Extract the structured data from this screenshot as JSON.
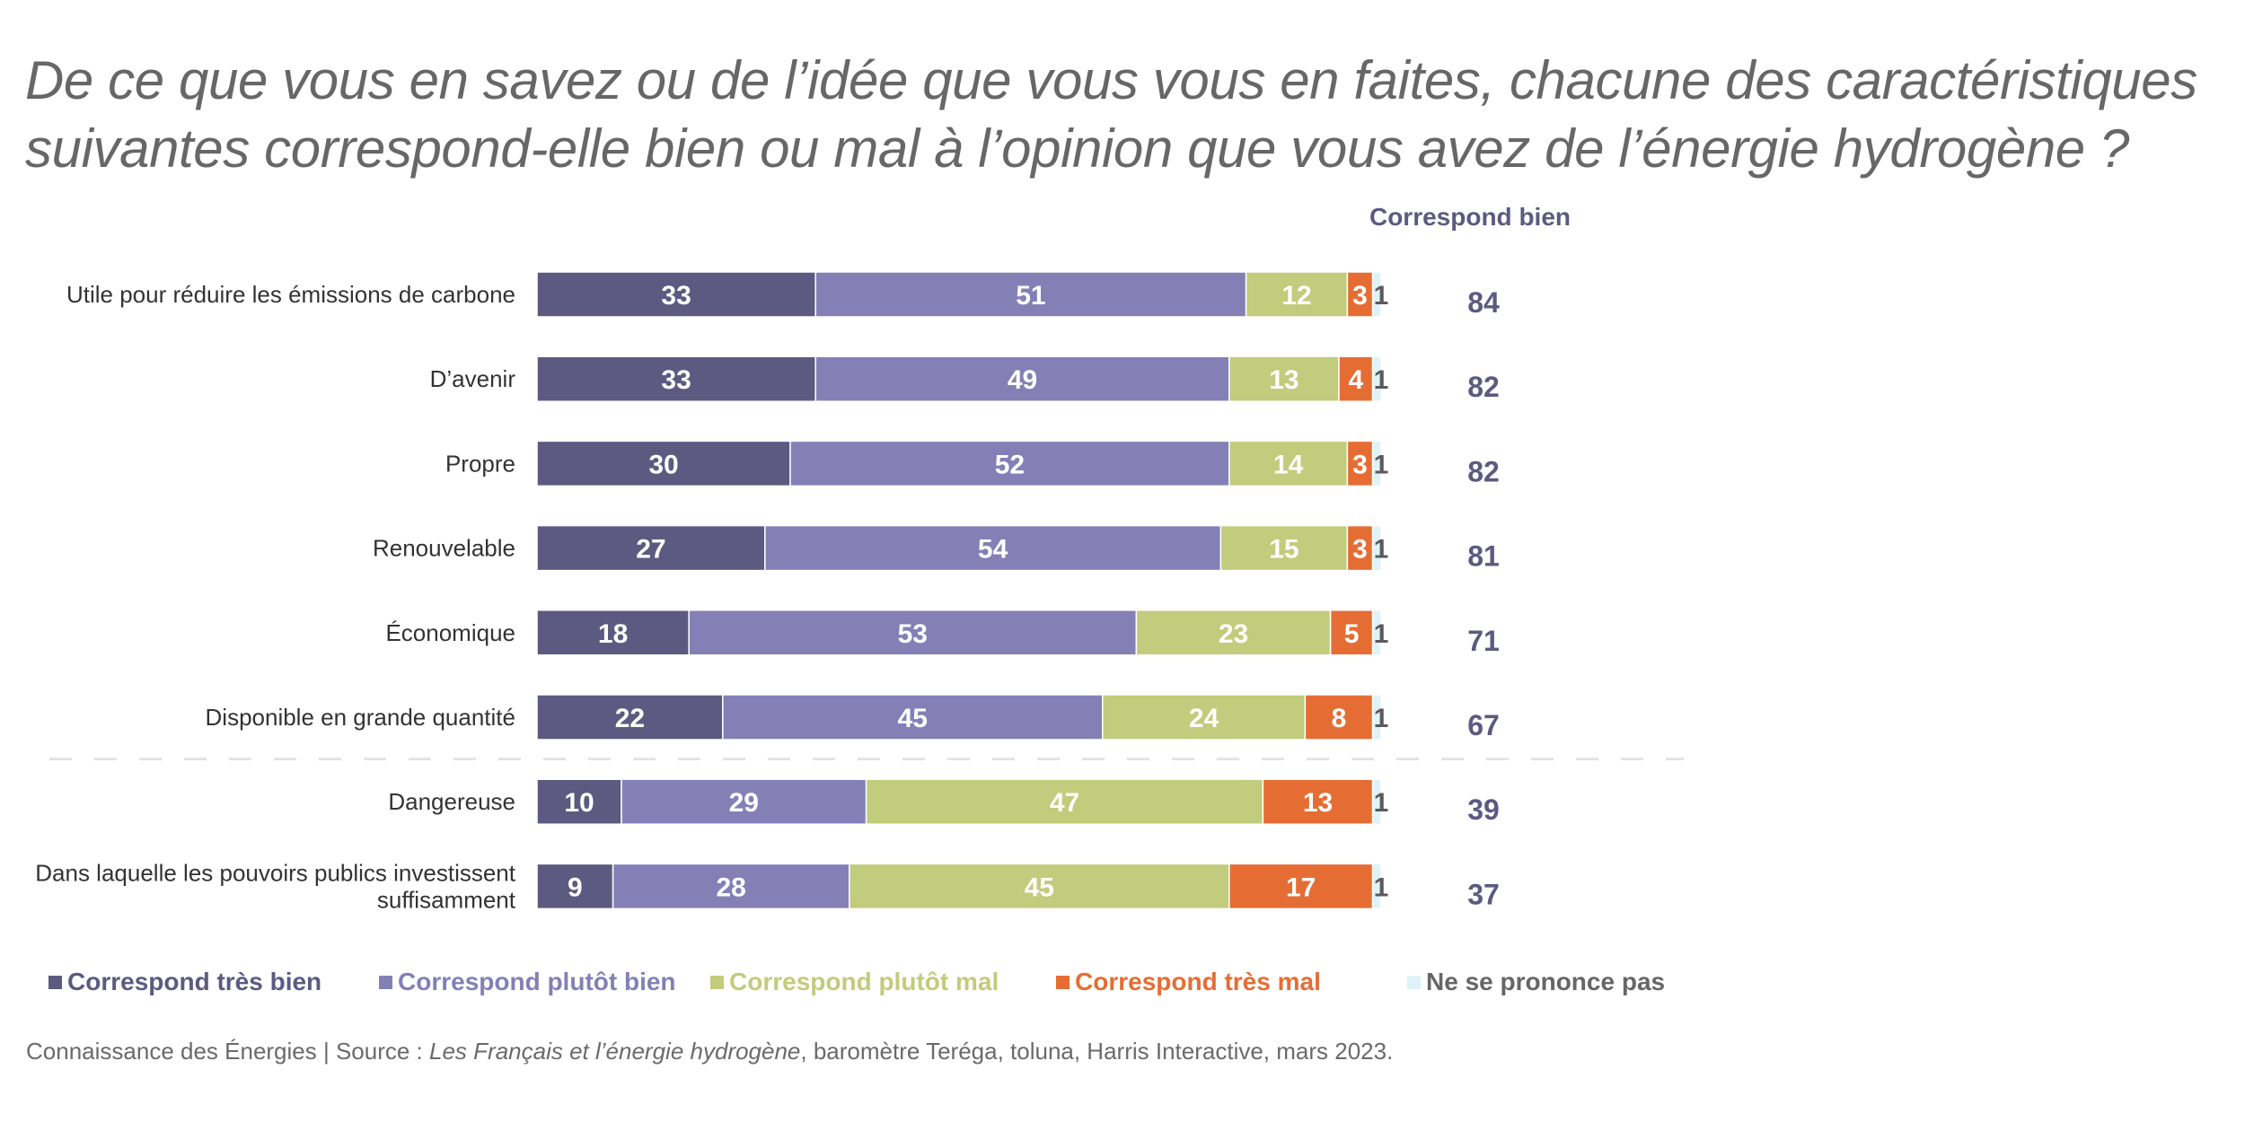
{
  "title": {
    "line1": "De ce que vous en savez ou de l’idée que vous vous en faites, chacune des caractéristiques",
    "line2": "suivantes correspond-elle bien ou mal à l’opinion que vous avez de l’énergie hydrogène ?"
  },
  "column_header": "Correspond bien",
  "colors": {
    "tres_bien": "#5c5a80",
    "plutot_bien": "#8480b6",
    "plutot_mal": "#c1cc7c",
    "tres_mal": "#e56d34",
    "nsp": "#dff2f8",
    "nsp_label": "#5a5a5a",
    "total": "#5c5a80"
  },
  "legend": [
    {
      "label": "Correspond très bien",
      "color": "#5c5a80",
      "text_color": "#5c5a80"
    },
    {
      "label": "Correspond plutôt bien",
      "color": "#8480b6",
      "text_color": "#8480b6"
    },
    {
      "label": "Correspond plutôt mal",
      "color": "#c1cc7c",
      "text_color": "#c1cc7c"
    },
    {
      "label": "Correspond très mal",
      "color": "#e56d34",
      "text_color": "#e56d34"
    },
    {
      "label": "Ne se prononce pas",
      "color": "#dff2f8",
      "text_color": "#666666"
    }
  ],
  "source": {
    "prefix": "Connaissance des Énergies | Source : ",
    "italic": "Les Français et l’énergie hydrogène",
    "suffix": ", baromètre Teréga, toluna, Harris Interactive, mars 2023."
  },
  "chart_data": {
    "type": "bar",
    "orientation": "horizontal",
    "stacked": true,
    "title": "De ce que vous en savez ou de l’idée que vous vous en faites, chacune des caractéristiques suivantes correspond-elle bien ou mal à l’opinion que vous avez de l’énergie hydrogène ?",
    "unit": "%",
    "xlim": [
      0,
      100
    ],
    "grid": false,
    "legend_position": "bottom",
    "categories": [
      "Utile pour réduire les émissions de carbone",
      "D’avenir",
      "Propre",
      "Renouvelable",
      "Économique",
      "Disponible en grande quantité",
      "Dangereuse",
      "Dans laquelle les pouvoirs publics investissent suffisamment"
    ],
    "category_lines": [
      [
        "Utile pour réduire les émissions de carbone"
      ],
      [
        "D’avenir"
      ],
      [
        "Propre"
      ],
      [
        "Renouvelable"
      ],
      [
        "Économique"
      ],
      [
        "Disponible en grande quantité"
      ],
      [
        "Dangereuse"
      ],
      [
        "Dans laquelle les pouvoirs publics investissent",
        "suffisamment"
      ]
    ],
    "separator_after_index": 5,
    "series": [
      {
        "name": "Correspond très bien",
        "color": "#5c5a80",
        "values": [
          33,
          33,
          30,
          27,
          18,
          22,
          10,
          9
        ]
      },
      {
        "name": "Correspond plutôt bien",
        "color": "#8480b6",
        "values": [
          51,
          49,
          52,
          54,
          53,
          45,
          29,
          28
        ]
      },
      {
        "name": "Correspond plutôt mal",
        "color": "#c1cc7c",
        "values": [
          12,
          13,
          14,
          15,
          23,
          24,
          47,
          45
        ]
      },
      {
        "name": "Correspond très mal",
        "color": "#e56d34",
        "values": [
          3,
          4,
          3,
          3,
          5,
          8,
          13,
          17
        ]
      },
      {
        "name": "Ne se prononce pas",
        "color": "#dff2f8",
        "values": [
          1,
          1,
          1,
          1,
          1,
          1,
          1,
          1
        ]
      }
    ],
    "totals": {
      "label": "Correspond bien",
      "values": [
        84,
        82,
        82,
        81,
        71,
        67,
        39,
        37
      ]
    }
  }
}
